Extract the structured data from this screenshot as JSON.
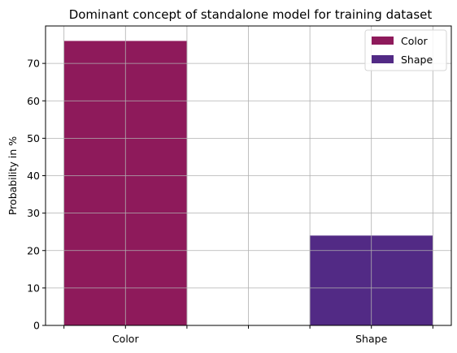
{
  "chart_data": {
    "type": "bar",
    "title": "Dominant concept of standalone model for training dataset",
    "xlabel": "",
    "ylabel": "Probability in %",
    "categories": [
      "Color",
      "Shape"
    ],
    "series": [
      {
        "name": "Color",
        "category": "Color",
        "value": 76,
        "color": "#8e1a5b"
      },
      {
        "name": "Shape",
        "category": "Shape",
        "value": 24,
        "color": "#522a85"
      }
    ],
    "ylim": [
      0,
      80
    ],
    "yticks": [
      0,
      10,
      20,
      30,
      40,
      50,
      60,
      70
    ],
    "grid": true,
    "legend_position": "top-right"
  }
}
